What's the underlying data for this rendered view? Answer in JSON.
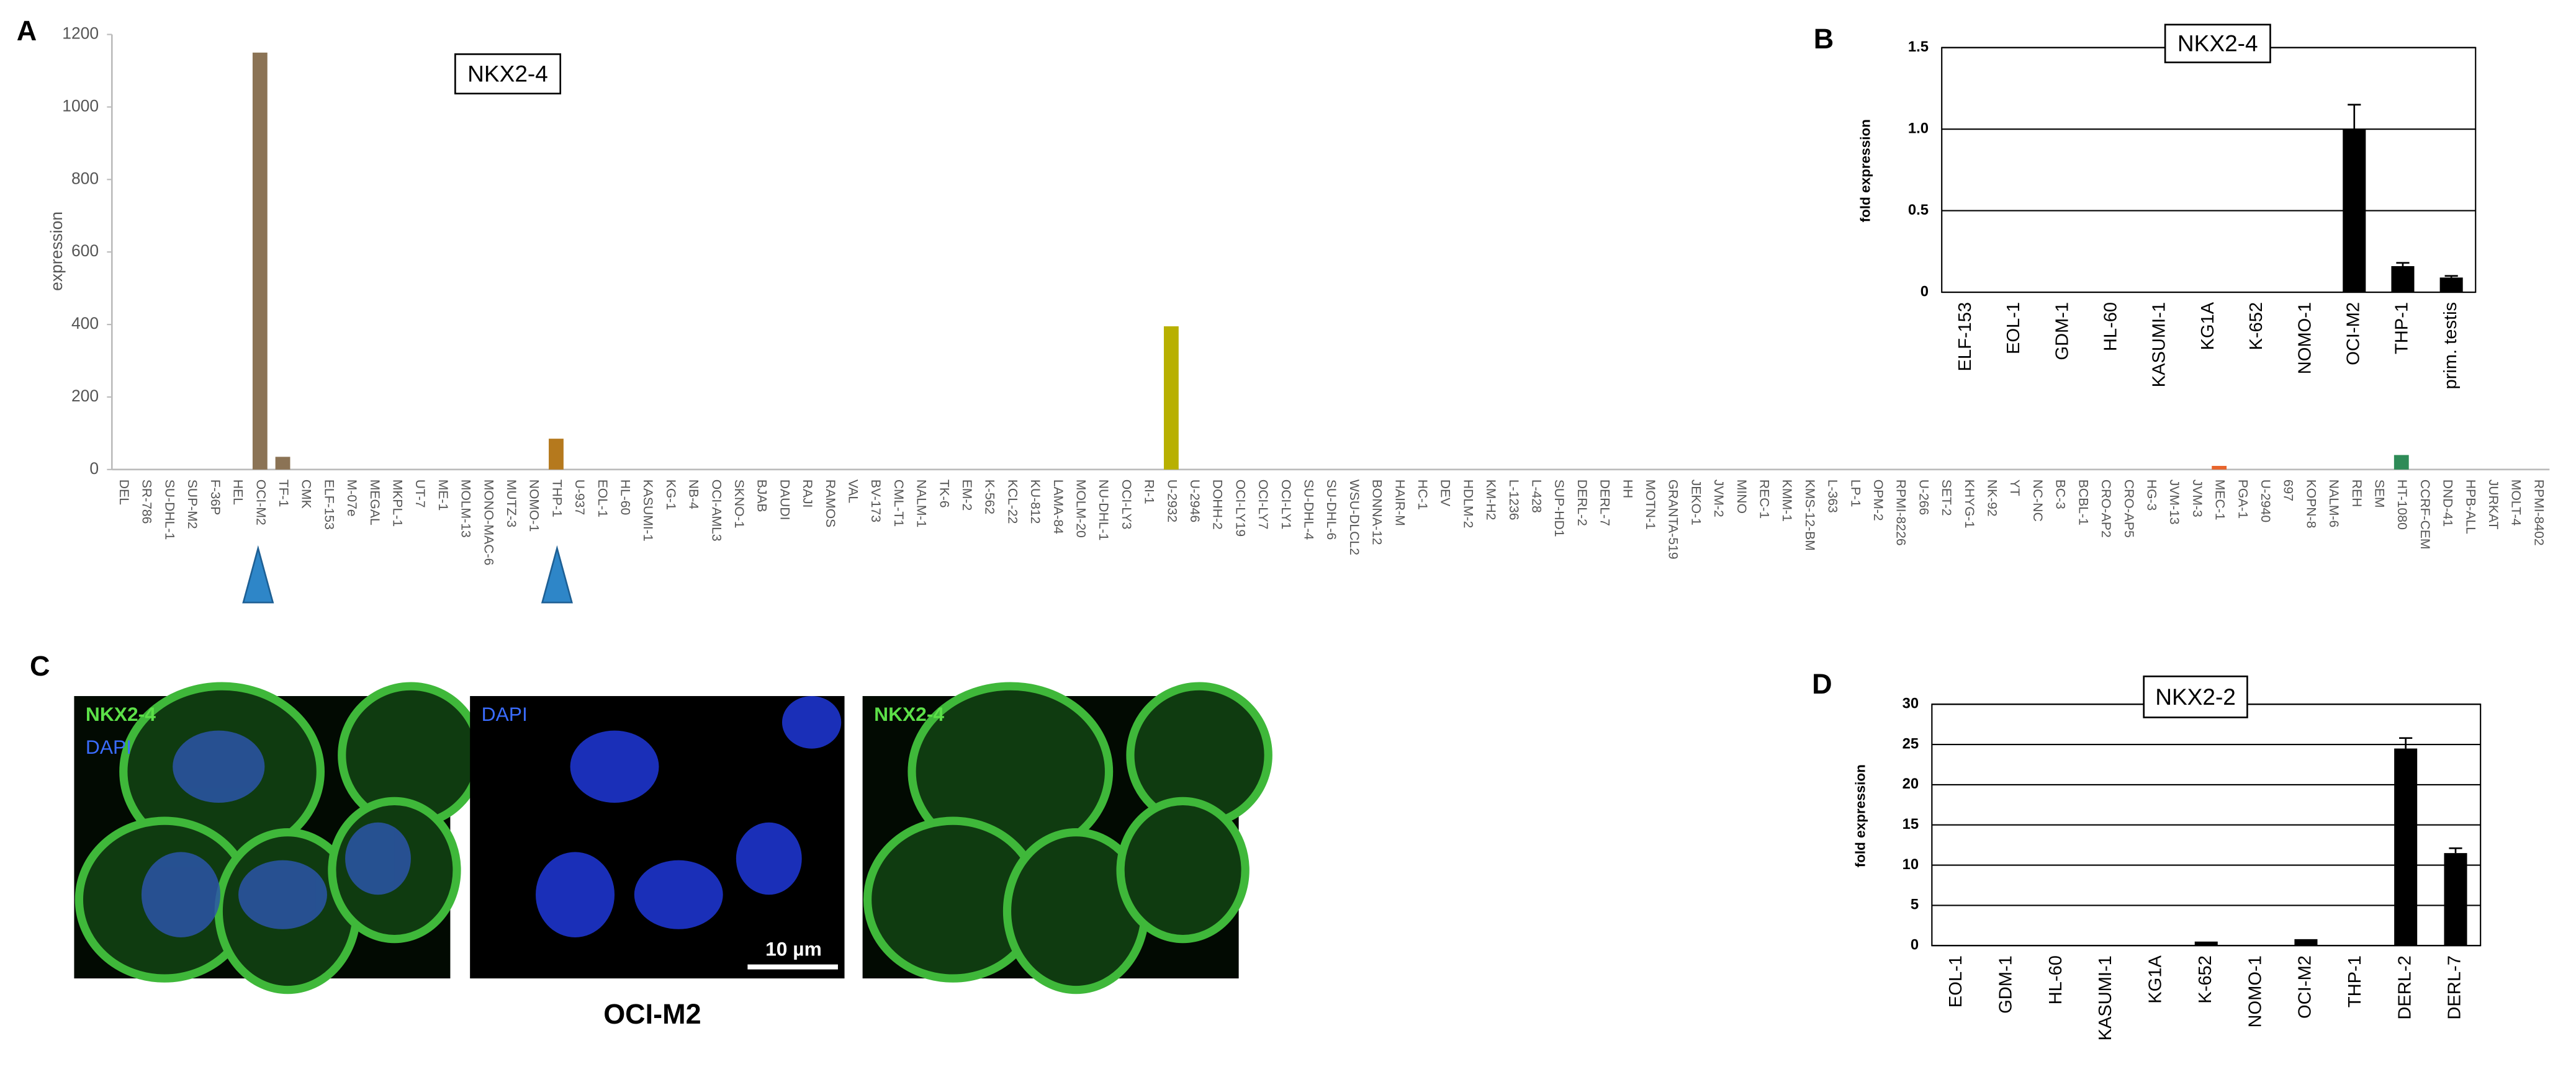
{
  "chart_data": [
    {
      "type": "bar",
      "panel": "A",
      "title": "NKX2-4",
      "y_label": "expression",
      "categories": [
        "DEL",
        "SR-786",
        "SU-DHL-1",
        "SUP-M2",
        "F-36P",
        "HEL",
        "OCI-M2",
        "TF-1",
        "CMK",
        "ELF-153",
        "M-07e",
        "MEGAL",
        "MKPL-1",
        "UT-7",
        "ME-1",
        "MOLM-13",
        "MONO-MAC-6",
        "MUTZ-3",
        "NOMO-1",
        "THP-1",
        "U-937",
        "EOL-1",
        "HL-60",
        "KASUMI-1",
        "KG-1",
        "NB-4",
        "OCI-AML3",
        "SKNO-1",
        "BJAB",
        "DAUDI",
        "RAJI",
        "RAMOS",
        "VAL",
        "BV-173",
        "CML-T1",
        "NALM-1",
        "TK-6",
        "EM-2",
        "K-562",
        "KCL-22",
        "KU-812",
        "LAMA-84",
        "MOLM-20",
        "NU-DHL-1",
        "OCI-LY3",
        "RI-1",
        "U-2932",
        "U-2946",
        "DOHH-2",
        "OCI-LY19",
        "OCI-LY7",
        "OCI-LY1",
        "SU-DHL-4",
        "SU-DHL-6",
        "WSU-DLCL2",
        "BONNA-12",
        "HAIR-M",
        "HC-1",
        "DEV",
        "HDLM-2",
        "KM-H2",
        "L-1236",
        "L-428",
        "SUP-HD1",
        "DERL-2",
        "DERL-7",
        "HH",
        "MOTN-1",
        "GRANTA-519",
        "JEKO-1",
        "JVM-2",
        "MINO",
        "REC-1",
        "KMM-1",
        "KMS-12-BM",
        "L-363",
        "LP-1",
        "OPM-2",
        "RPMI-8226",
        "U-266",
        "SET-2",
        "KHYG-1",
        "NK-92",
        "YT",
        "NC-NC",
        "BC-3",
        "BCBL-1",
        "CRO-AP2",
        "CRO-AP5",
        "HG-3",
        "JVM-13",
        "JVM-3",
        "MEC-1",
        "PGA-1",
        "U-2940",
        "697",
        "KOPN-8",
        "NALM-6",
        "REH",
        "SEM",
        "HT-1080",
        "CCRF-CEM",
        "DND-41",
        "HPB-ALL",
        "JURKAT",
        "MOLT-4",
        "RPMI-8402"
      ],
      "values": [
        0,
        0,
        0,
        0,
        0,
        0,
        1150,
        35,
        0,
        0,
        0,
        0,
        0,
        0,
        0,
        0,
        0,
        0,
        0,
        85,
        0,
        0,
        0,
        0,
        0,
        0,
        0,
        0,
        0,
        0,
        0,
        0,
        0,
        0,
        0,
        0,
        0,
        0,
        0,
        0,
        0,
        0,
        0,
        0,
        0,
        0,
        395,
        0,
        0,
        0,
        0,
        0,
        0,
        0,
        0,
        0,
        0,
        0,
        0,
        0,
        0,
        0,
        0,
        0,
        0,
        0,
        0,
        0,
        0,
        0,
        0,
        0,
        0,
        0,
        0,
        0,
        0,
        0,
        0,
        0,
        0,
        0,
        0,
        0,
        0,
        0,
        0,
        0,
        0,
        0,
        0,
        0,
        10,
        0,
        0,
        0,
        0,
        0,
        0,
        0,
        40,
        0,
        0,
        0,
        0,
        0,
        0
      ],
      "color": "#8b7355",
      "colors": [
        null,
        null,
        null,
        null,
        null,
        null,
        "#8b7355",
        "#8b7355",
        null,
        null,
        null,
        null,
        null,
        null,
        null,
        null,
        null,
        null,
        null,
        "#b5791d",
        null,
        null,
        null,
        null,
        null,
        null,
        null,
        null,
        null,
        null,
        null,
        null,
        null,
        null,
        null,
        null,
        null,
        null,
        null,
        null,
        null,
        null,
        null,
        null,
        null,
        null,
        "#b8b000",
        null,
        null,
        null,
        null,
        null,
        null,
        null,
        null,
        null,
        null,
        null,
        null,
        null,
        null,
        null,
        null,
        null,
        null,
        null,
        null,
        null,
        null,
        null,
        null,
        null,
        null,
        null,
        null,
        null,
        null,
        null,
        null,
        null,
        null,
        null,
        null,
        null,
        null,
        null,
        null,
        null,
        null,
        null,
        null,
        null,
        "#e8642c",
        null,
        null,
        null,
        null,
        null,
        null,
        null,
        "#2e8b57",
        null,
        null,
        null,
        null,
        null,
        null
      ],
      "ylim": [
        0,
        1200
      ],
      "yticks": [
        0,
        200,
        400,
        600,
        800,
        1000,
        1200
      ],
      "grid": false
    },
    {
      "type": "bar",
      "panel": "B",
      "title": "NKX2-4",
      "y_label": "fold expression",
      "categories": [
        "ELF-153",
        "EOL-1",
        "GDM-1",
        "HL-60",
        "KASUMI-1",
        "KG1A",
        "K-652",
        "NOMO-1",
        "OCI-M2",
        "THP-1",
        "prim. testis"
      ],
      "values": [
        0,
        0,
        0,
        0,
        0,
        0,
        0,
        0,
        1.0,
        0.16,
        0.09
      ],
      "errors": [
        null,
        null,
        null,
        null,
        null,
        null,
        null,
        null,
        0.15,
        0.02,
        0.01
      ],
      "color": "#000000",
      "ylim": [
        0,
        1.5
      ],
      "yticks": [
        0,
        0.5,
        {
          "value": 1,
          "label": "1.0"
        },
        1.5
      ],
      "grid": true
    },
    {
      "type": "bar",
      "panel": "D",
      "title": "NKX2-2",
      "y_label": "fold expression",
      "categories": [
        "EOL-1",
        "GDM-1",
        "HL-60",
        "KASUMI-1",
        "KG1A",
        "K-652",
        "NOMO-1",
        "OCI-M2",
        "THP-1",
        "DERL-2",
        "DERL-7"
      ],
      "values": [
        0,
        0,
        0,
        0,
        0,
        0.5,
        0,
        0.8,
        0,
        24.5,
        11.5
      ],
      "errors": [
        null,
        null,
        null,
        null,
        null,
        null,
        null,
        null,
        null,
        1.3,
        0.6
      ],
      "color": "#000000",
      "ylim": [
        0,
        30
      ],
      "yticks": [
        0,
        5,
        10,
        15,
        20,
        25,
        30
      ],
      "grid": true
    }
  ],
  "panel_c": {
    "panel": "C",
    "images": [
      {
        "labels": [
          "NKX2-4",
          "DAPI"
        ]
      },
      {
        "labels": [
          "DAPI"
        ]
      },
      {
        "labels": [
          "NKX2-4"
        ]
      }
    ],
    "scale_bar": "10 µm",
    "caption": "OCI-M2"
  }
}
